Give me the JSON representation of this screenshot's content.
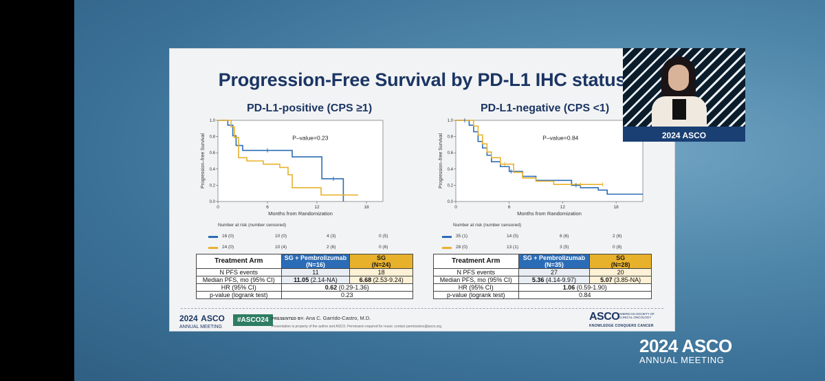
{
  "slide": {
    "title": "Progression-Free Survival by PD-L1 IHC status"
  },
  "colors": {
    "sg_pembro": "#2b6cb6",
    "sg": "#e8b12c",
    "title": "#1b3564"
  },
  "left_panel": {
    "title": "PD-L1-positive (CPS ≥1)",
    "risk_header": "Number at risk (number censored)",
    "risk": [
      {
        "series": "SG + Pembrolizumab",
        "values": [
          "16 (0)",
          "10 (0)",
          "4 (3)",
          "0 (5)"
        ]
      },
      {
        "series": "SG",
        "values": [
          "24 (0)",
          "10 (4)",
          "2 (6)",
          "0 (6)"
        ]
      }
    ],
    "table": {
      "header_arm": "Treatment Arm",
      "header_c1": [
        "SG + Pembrolizumab",
        "(N=16)"
      ],
      "header_c2": [
        "SG",
        "(N=24)"
      ],
      "rows": [
        {
          "label": "N PFS events",
          "c1": "11",
          "c2": "18"
        },
        {
          "label": "Median PFS, mo (95% CI)",
          "c1_bold": "11.05",
          "c1": " (2.14-NA)",
          "c2_bold": "6.68",
          "c2": " (2.53-9.24)"
        }
      ],
      "hr_label": "HR (95% CI)",
      "hr_bold": "0.62",
      "hr": " (0.29-1.36)",
      "p_label": "p-value (logrank test)",
      "p": "0.23"
    }
  },
  "right_panel": {
    "title": "PD-L1-negative (CPS <1)",
    "risk_header": "Number at risk (number censored)",
    "risk": [
      {
        "series": "SG + Pembrolizumab",
        "values": [
          "35 (1)",
          "14 (5)",
          "6 (6)",
          "2 (6)"
        ]
      },
      {
        "series": "SG",
        "values": [
          "28 (0)",
          "13 (1)",
          "3 (5)",
          "0 (8)"
        ]
      }
    ],
    "table": {
      "header_arm": "Treatment Arm",
      "header_c1": [
        "SG + Pembrolizumab",
        "(N=35)"
      ],
      "header_c2": [
        "SG",
        "(N=28)"
      ],
      "rows": [
        {
          "label": "N PFS events",
          "c1": "27",
          "c2": "20"
        },
        {
          "label": "Median PFS, mo (95% CI)",
          "c1_bold": "5.36",
          "c1": " (4.14-9.97)",
          "c2_bold": "5.07",
          "c2": " (3.85-NA)"
        }
      ],
      "hr_label": "HR (95% CI)",
      "hr_bold": "1.06",
      "hr": " (0.59-1.90)",
      "p_label": "p-value (logrank test)",
      "p": "0.84"
    }
  },
  "chart_data": [
    {
      "type": "line",
      "step": true,
      "xlabel": "Months from Randomization",
      "ylabel": "Progression–free Survival",
      "xlim": [
        0,
        20
      ],
      "ylim": [
        0,
        1
      ],
      "xticks": [
        0,
        6,
        12,
        18
      ],
      "yticks": [
        0.0,
        0.2,
        0.4,
        0.6,
        0.8,
        1.0
      ],
      "annotation": "P–value=0.23",
      "series": [
        {
          "color": "#2b6cb6",
          "x": [
            0,
            1.2,
            1.8,
            2.2,
            3.0,
            6.5,
            9.0,
            11.0,
            12.6,
            15.0,
            15.2
          ],
          "y": [
            1.0,
            0.94,
            0.81,
            0.69,
            0.63,
            0.63,
            0.55,
            0.55,
            0.28,
            0.28,
            0.0
          ]
        },
        {
          "color": "#e8b12c",
          "x": [
            0,
            1.6,
            2.0,
            2.5,
            3.5,
            5.5,
            7.5,
            8.5,
            9.0,
            11.5,
            12.5,
            17.0
          ],
          "y": [
            1.0,
            0.92,
            0.79,
            0.54,
            0.5,
            0.46,
            0.42,
            0.33,
            0.17,
            0.17,
            0.08,
            0.08
          ]
        }
      ],
      "censor_marks": [
        {
          "color": "#2b6cb6",
          "x": [
            6.0,
            14.0
          ],
          "y": [
            0.63,
            0.28
          ]
        }
      ]
    },
    {
      "type": "line",
      "step": true,
      "xlabel": "Months from Randomization",
      "ylabel": "Progression–free Survival",
      "xlim": [
        0,
        21
      ],
      "ylim": [
        0,
        1
      ],
      "xticks": [
        0,
        6,
        12,
        18
      ],
      "yticks": [
        0.0,
        0.2,
        0.4,
        0.6,
        0.8,
        1.0
      ],
      "annotation": "P–value=0.84",
      "series": [
        {
          "color": "#2b6cb6",
          "x": [
            0,
            1.5,
            2.0,
            2.5,
            3.0,
            3.5,
            4.0,
            5.0,
            6.0,
            7.5,
            9.0,
            11.0,
            13.0,
            14.0,
            16.0,
            17.0,
            21.0
          ],
          "y": [
            1.0,
            0.94,
            0.86,
            0.74,
            0.66,
            0.57,
            0.49,
            0.43,
            0.37,
            0.31,
            0.26,
            0.26,
            0.2,
            0.17,
            0.14,
            0.09,
            0.09
          ]
        },
        {
          "color": "#e8b12c",
          "x": [
            0,
            2.0,
            2.5,
            3.0,
            3.5,
            4.0,
            5.0,
            6.5,
            7.5,
            9.0,
            11.0,
            16.5
          ],
          "y": [
            1.0,
            0.93,
            0.82,
            0.71,
            0.61,
            0.54,
            0.46,
            0.36,
            0.29,
            0.25,
            0.21,
            0.21
          ]
        }
      ],
      "censor_marks": [
        {
          "color": "#2b6cb6",
          "x": [
            1.0,
            6.2,
            13.5
          ],
          "y": [
            1.0,
            0.37,
            0.2
          ]
        },
        {
          "color": "#e8b12c",
          "x": [
            5.5,
            14.0,
            16.5
          ],
          "y": [
            0.46,
            0.21,
            0.21
          ]
        }
      ]
    }
  ],
  "footer": {
    "year": "2024",
    "asco": "ASCO",
    "annual_meeting": "ANNUAL MEETING",
    "hashtag": "#ASCO24",
    "presented_by": "PRESENTED BY:",
    "presenter": "Ana C. Garrido-Castro, M.D.",
    "note": "Presentation is property of the author and ASCO. Permission required for reuse; contact permissions@asco.org.",
    "brand": "ASCO",
    "society": "AMERICAN SOCIETY OF CLINICAL ONCOLOGY",
    "tagline": "KNOWLEDGE CONQUERS CANCER"
  },
  "pip": {
    "logo": "2024 ASCO"
  },
  "corner": {
    "year_asco": "2024 ASCO",
    "annual_meeting": "ANNUAL MEETING"
  }
}
